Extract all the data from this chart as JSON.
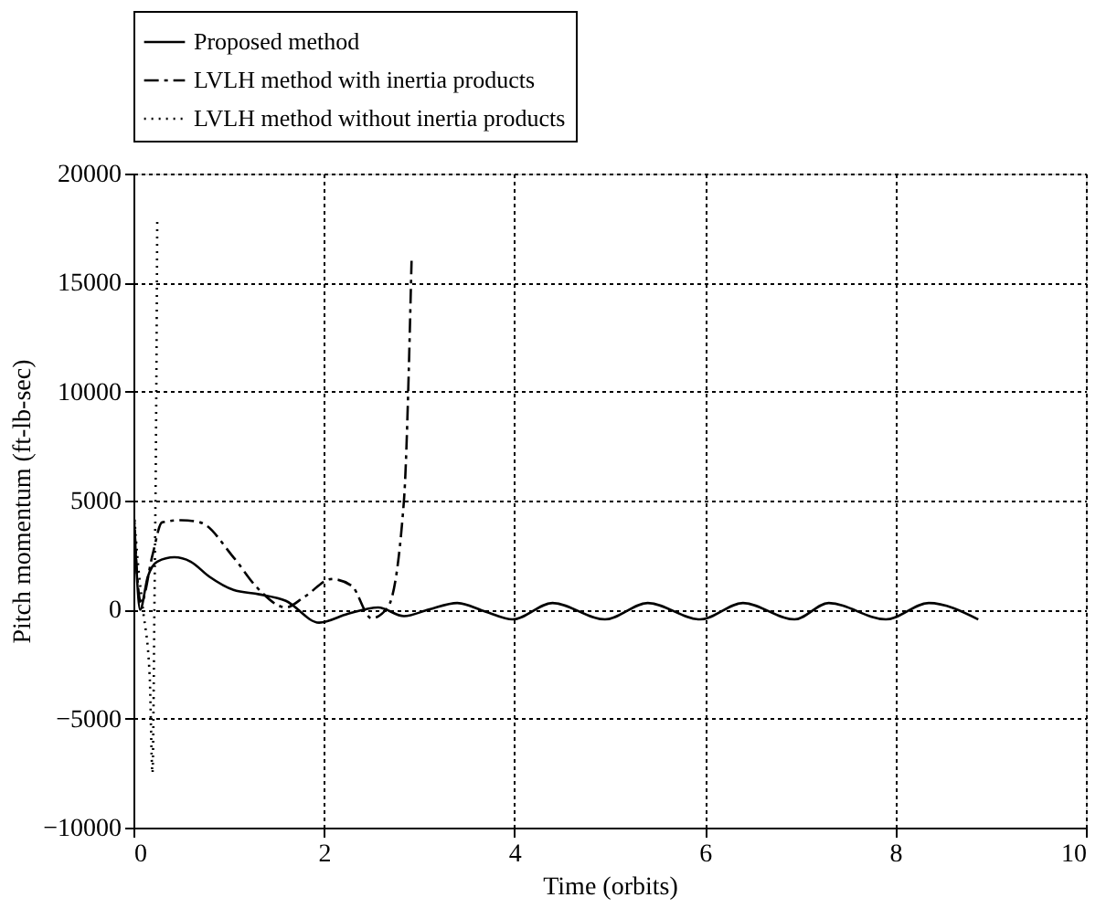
{
  "chart_data": {
    "type": "line",
    "xlabel": "Time (orbits)",
    "ylabel": "Pitch momentum (ft-lb-sec)",
    "xlim": [
      0,
      10
    ],
    "xticks": [
      0,
      2,
      4,
      6,
      8,
      10
    ],
    "ylim": [
      -10000,
      20000
    ],
    "yticks": [
      -10000,
      -5000,
      0,
      5000,
      10000,
      15000,
      20000
    ],
    "grid": true,
    "legend": "top",
    "series": [
      {
        "name": "Proposed method",
        "color": "#000000",
        "line_style": "solid",
        "x": [
          0,
          0.03,
          0.07,
          0.15,
          0.25,
          0.43,
          0.6,
          0.8,
          1.05,
          1.32,
          1.6,
          1.95,
          2.25,
          2.57,
          2.84,
          3.1,
          3.4,
          3.7,
          3.98,
          4.4,
          4.95,
          5.4,
          5.95,
          6.4,
          6.94,
          7.3,
          7.9,
          8.35,
          8.87
        ],
        "values": [
          4800,
          2000,
          0,
          1500,
          2200,
          2400,
          2200,
          1500,
          900,
          700,
          400,
          -600,
          -200,
          100,
          -300,
          0,
          300,
          -100,
          -450,
          300,
          -450,
          300,
          -450,
          300,
          -450,
          300,
          -450,
          300,
          -450
        ]
      },
      {
        "name": "LVLH method with inertia products",
        "color": "#000000",
        "line_style": "dashdot",
        "x": [
          0,
          0.04,
          0.08,
          0.2,
          0.3,
          0.5,
          0.7,
          1.05,
          1.3,
          1.6,
          1.8,
          2.08,
          2.29,
          2.5,
          2.67,
          2.84,
          2.92
        ],
        "values": [
          5000,
          1500,
          300,
          2500,
          4000,
          4100,
          4000,
          2400,
          1000,
          100,
          600,
          1400,
          1100,
          -400,
          100,
          5000,
          16000
        ]
      },
      {
        "name": "LVLH method without inertia products",
        "color": "#000000",
        "line_style": "dotted",
        "x": [
          0,
          0.05,
          0.1,
          0.17,
          0.2,
          0.22,
          0.24,
          0.25
        ],
        "values": [
          4800,
          2000,
          0,
          -3000,
          -7500,
          0,
          10000,
          18000
        ]
      }
    ]
  }
}
